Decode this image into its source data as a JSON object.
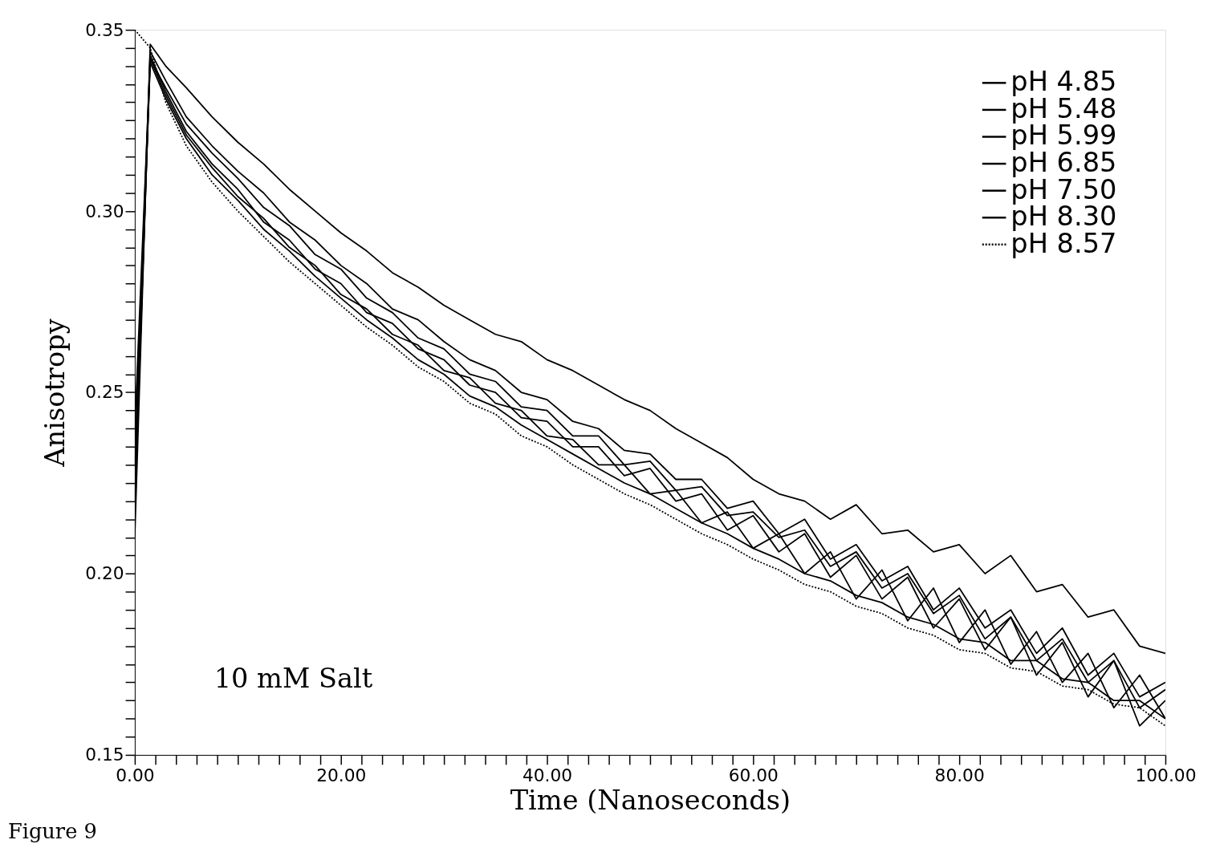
{
  "chart_data": {
    "type": "line",
    "xlabel": "Time (Nanoseconds)",
    "ylabel": "Anisotropy",
    "annotations": [
      "10 mM Salt",
      "Figure 9"
    ],
    "x": [
      0,
      1.5,
      3,
      5,
      7.5,
      10,
      12.5,
      15,
      17.5,
      20,
      22.5,
      25,
      27.5,
      30,
      32.5,
      35,
      37.5,
      40,
      42.5,
      45,
      47.5,
      50,
      52.5,
      55,
      57.5,
      60,
      62.5,
      65,
      67.5,
      70,
      72.5,
      75,
      77.5,
      80,
      82.5,
      85,
      87.5,
      90,
      92.5,
      95,
      97.5,
      100
    ],
    "xlim": [
      0,
      100
    ],
    "ylim": [
      0.15,
      0.35
    ],
    "xticks": [
      {
        "value": 0,
        "label": "0.00"
      },
      {
        "value": 2,
        "label": null
      },
      {
        "value": 4,
        "label": null
      },
      {
        "value": 6,
        "label": null
      },
      {
        "value": 8,
        "label": null
      },
      {
        "value": 10,
        "label": null
      },
      {
        "value": 12,
        "label": null
      },
      {
        "value": 14,
        "label": null
      },
      {
        "value": 16,
        "label": null
      },
      {
        "value": 18,
        "label": null
      },
      {
        "value": 20,
        "label": "20.00"
      },
      {
        "value": 22,
        "label": null
      },
      {
        "value": 24,
        "label": null
      },
      {
        "value": 26,
        "label": null
      },
      {
        "value": 28,
        "label": null
      },
      {
        "value": 30,
        "label": null
      },
      {
        "value": 32,
        "label": null
      },
      {
        "value": 34,
        "label": null
      },
      {
        "value": 36,
        "label": null
      },
      {
        "value": 38,
        "label": null
      },
      {
        "value": 40,
        "label": "40.00"
      },
      {
        "value": 42,
        "label": null
      },
      {
        "value": 44,
        "label": null
      },
      {
        "value": 46,
        "label": null
      },
      {
        "value": 48,
        "label": null
      },
      {
        "value": 50,
        "label": null
      },
      {
        "value": 52,
        "label": null
      },
      {
        "value": 54,
        "label": null
      },
      {
        "value": 56,
        "label": null
      },
      {
        "value": 58,
        "label": null
      },
      {
        "value": 60,
        "label": "60.00"
      },
      {
        "value": 62,
        "label": null
      },
      {
        "value": 64,
        "label": null
      },
      {
        "value": 66,
        "label": null
      },
      {
        "value": 68,
        "label": null
      },
      {
        "value": 70,
        "label": null
      },
      {
        "value": 72,
        "label": null
      },
      {
        "value": 74,
        "label": null
      },
      {
        "value": 76,
        "label": null
      },
      {
        "value": 78,
        "label": null
      },
      {
        "value": 80,
        "label": "80.00"
      },
      {
        "value": 82,
        "label": null
      },
      {
        "value": 84,
        "label": null
      },
      {
        "value": 86,
        "label": null
      },
      {
        "value": 88,
        "label": null
      },
      {
        "value": 90,
        "label": null
      },
      {
        "value": 92,
        "label": null
      },
      {
        "value": 94,
        "label": null
      },
      {
        "value": 96,
        "label": null
      },
      {
        "value": 98,
        "label": null
      },
      {
        "value": 100,
        "label": "100.00"
      }
    ],
    "yticks": [
      {
        "value": 0.15,
        "label": "0.15"
      },
      {
        "value": 0.155,
        "label": null
      },
      {
        "value": 0.16,
        "label": null
      },
      {
        "value": 0.165,
        "label": null
      },
      {
        "value": 0.17,
        "label": null
      },
      {
        "value": 0.175,
        "label": null
      },
      {
        "value": 0.18,
        "label": null
      },
      {
        "value": 0.185,
        "label": null
      },
      {
        "value": 0.19,
        "label": null
      },
      {
        "value": 0.195,
        "label": null
      },
      {
        "value": 0.2,
        "label": "0.20"
      },
      {
        "value": 0.205,
        "label": null
      },
      {
        "value": 0.21,
        "label": null
      },
      {
        "value": 0.215,
        "label": null
      },
      {
        "value": 0.22,
        "label": null
      },
      {
        "value": 0.225,
        "label": null
      },
      {
        "value": 0.23,
        "label": null
      },
      {
        "value": 0.235,
        "label": null
      },
      {
        "value": 0.24,
        "label": null
      },
      {
        "value": 0.245,
        "label": null
      },
      {
        "value": 0.25,
        "label": "0.25"
      },
      {
        "value": 0.255,
        "label": null
      },
      {
        "value": 0.26,
        "label": null
      },
      {
        "value": 0.265,
        "label": null
      },
      {
        "value": 0.27,
        "label": null
      },
      {
        "value": 0.275,
        "label": null
      },
      {
        "value": 0.28,
        "label": null
      },
      {
        "value": 0.285,
        "label": null
      },
      {
        "value": 0.29,
        "label": null
      },
      {
        "value": 0.295,
        "label": null
      },
      {
        "value": 0.3,
        "label": "0.30"
      },
      {
        "value": 0.305,
        "label": null
      },
      {
        "value": 0.31,
        "label": null
      },
      {
        "value": 0.315,
        "label": null
      },
      {
        "value": 0.32,
        "label": null
      },
      {
        "value": 0.325,
        "label": null
      },
      {
        "value": 0.33,
        "label": null
      },
      {
        "value": 0.335,
        "label": null
      },
      {
        "value": 0.34,
        "label": null
      },
      {
        "value": 0.345,
        "label": null
      },
      {
        "value": 0.35,
        "label": "0.35"
      }
    ],
    "grid": false,
    "legend": "top right",
    "marker": "none",
    "series": [
      {
        "name": "pH  4.85",
        "color": "#000000",
        "line_style": "solid",
        "values": [
          0.21,
          0.346,
          0.34,
          0.334,
          0.326,
          0.319,
          0.313,
          0.306,
          0.3,
          0.294,
          0.289,
          0.283,
          0.279,
          0.274,
          0.27,
          0.266,
          0.264,
          0.259,
          0.256,
          0.252,
          0.248,
          0.245,
          0.24,
          0.236,
          0.232,
          0.226,
          0.222,
          0.22,
          0.215,
          0.219,
          0.211,
          0.212,
          0.206,
          0.208,
          0.2,
          0.205,
          0.195,
          0.197,
          0.188,
          0.19,
          0.18,
          0.178
        ]
      },
      {
        "name": "pH  5.48",
        "color": "#000000",
        "line_style": "solid",
        "values": [
          0.23,
          0.344,
          0.336,
          0.326,
          0.318,
          0.311,
          0.305,
          0.297,
          0.292,
          0.285,
          0.28,
          0.273,
          0.27,
          0.264,
          0.259,
          0.256,
          0.25,
          0.248,
          0.242,
          0.24,
          0.234,
          0.233,
          0.226,
          0.226,
          0.218,
          0.22,
          0.211,
          0.215,
          0.204,
          0.208,
          0.198,
          0.202,
          0.19,
          0.196,
          0.185,
          0.19,
          0.178,
          0.185,
          0.172,
          0.178,
          0.166,
          0.17
        ]
      },
      {
        "name": "pH  5.99",
        "color": "#000000",
        "line_style": "solid",
        "values": [
          0.22,
          0.342,
          0.334,
          0.324,
          0.316,
          0.309,
          0.301,
          0.296,
          0.288,
          0.284,
          0.276,
          0.272,
          0.265,
          0.262,
          0.255,
          0.253,
          0.246,
          0.245,
          0.238,
          0.238,
          0.23,
          0.231,
          0.223,
          0.224,
          0.216,
          0.217,
          0.21,
          0.212,
          0.202,
          0.206,
          0.196,
          0.2,
          0.189,
          0.194,
          0.182,
          0.188,
          0.176,
          0.182,
          0.17,
          0.176,
          0.163,
          0.168
        ]
      },
      {
        "name": "pH  6.85",
        "color": "#000000",
        "line_style": "solid",
        "values": [
          0.22,
          0.343,
          0.333,
          0.322,
          0.313,
          0.306,
          0.297,
          0.292,
          0.284,
          0.28,
          0.272,
          0.269,
          0.262,
          0.259,
          0.252,
          0.25,
          0.243,
          0.242,
          0.235,
          0.235,
          0.227,
          0.229,
          0.22,
          0.222,
          0.212,
          0.216,
          0.206,
          0.211,
          0.199,
          0.205,
          0.193,
          0.199,
          0.185,
          0.193,
          0.179,
          0.188,
          0.172,
          0.181,
          0.166,
          0.176,
          0.158,
          0.165
        ]
      },
      {
        "name": "pH  7.50",
        "color": "#000000",
        "line_style": "solid",
        "values": [
          0.24,
          0.342,
          0.332,
          0.321,
          0.312,
          0.304,
          0.298,
          0.29,
          0.285,
          0.277,
          0.273,
          0.266,
          0.263,
          0.256,
          0.254,
          0.247,
          0.245,
          0.238,
          0.237,
          0.23,
          0.23,
          0.222,
          0.223,
          0.214,
          0.217,
          0.207,
          0.211,
          0.2,
          0.206,
          0.193,
          0.201,
          0.187,
          0.196,
          0.181,
          0.19,
          0.175,
          0.184,
          0.17,
          0.178,
          0.163,
          0.172,
          0.16
        ]
      },
      {
        "name": "pH  8.30",
        "color": "#000000",
        "line_style": "solid",
        "values": [
          0.23,
          0.341,
          0.331,
          0.32,
          0.31,
          0.303,
          0.295,
          0.289,
          0.282,
          0.276,
          0.27,
          0.265,
          0.259,
          0.255,
          0.249,
          0.246,
          0.241,
          0.237,
          0.233,
          0.229,
          0.225,
          0.222,
          0.218,
          0.214,
          0.211,
          0.207,
          0.204,
          0.2,
          0.198,
          0.194,
          0.192,
          0.188,
          0.186,
          0.182,
          0.181,
          0.176,
          0.176,
          0.171,
          0.17,
          0.165,
          0.165,
          0.16
        ]
      },
      {
        "name": "pH  8.57",
        "color": "#000000",
        "line_style": "dotted",
        "values": [
          0.35,
          0.345,
          0.33,
          0.318,
          0.308,
          0.3,
          0.293,
          0.286,
          0.28,
          0.274,
          0.268,
          0.263,
          0.257,
          0.253,
          0.247,
          0.244,
          0.238,
          0.235,
          0.23,
          0.226,
          0.222,
          0.219,
          0.215,
          0.211,
          0.208,
          0.204,
          0.201,
          0.197,
          0.195,
          0.191,
          0.189,
          0.185,
          0.183,
          0.179,
          0.178,
          0.174,
          0.173,
          0.169,
          0.168,
          0.164,
          0.163,
          0.158
        ]
      }
    ]
  }
}
